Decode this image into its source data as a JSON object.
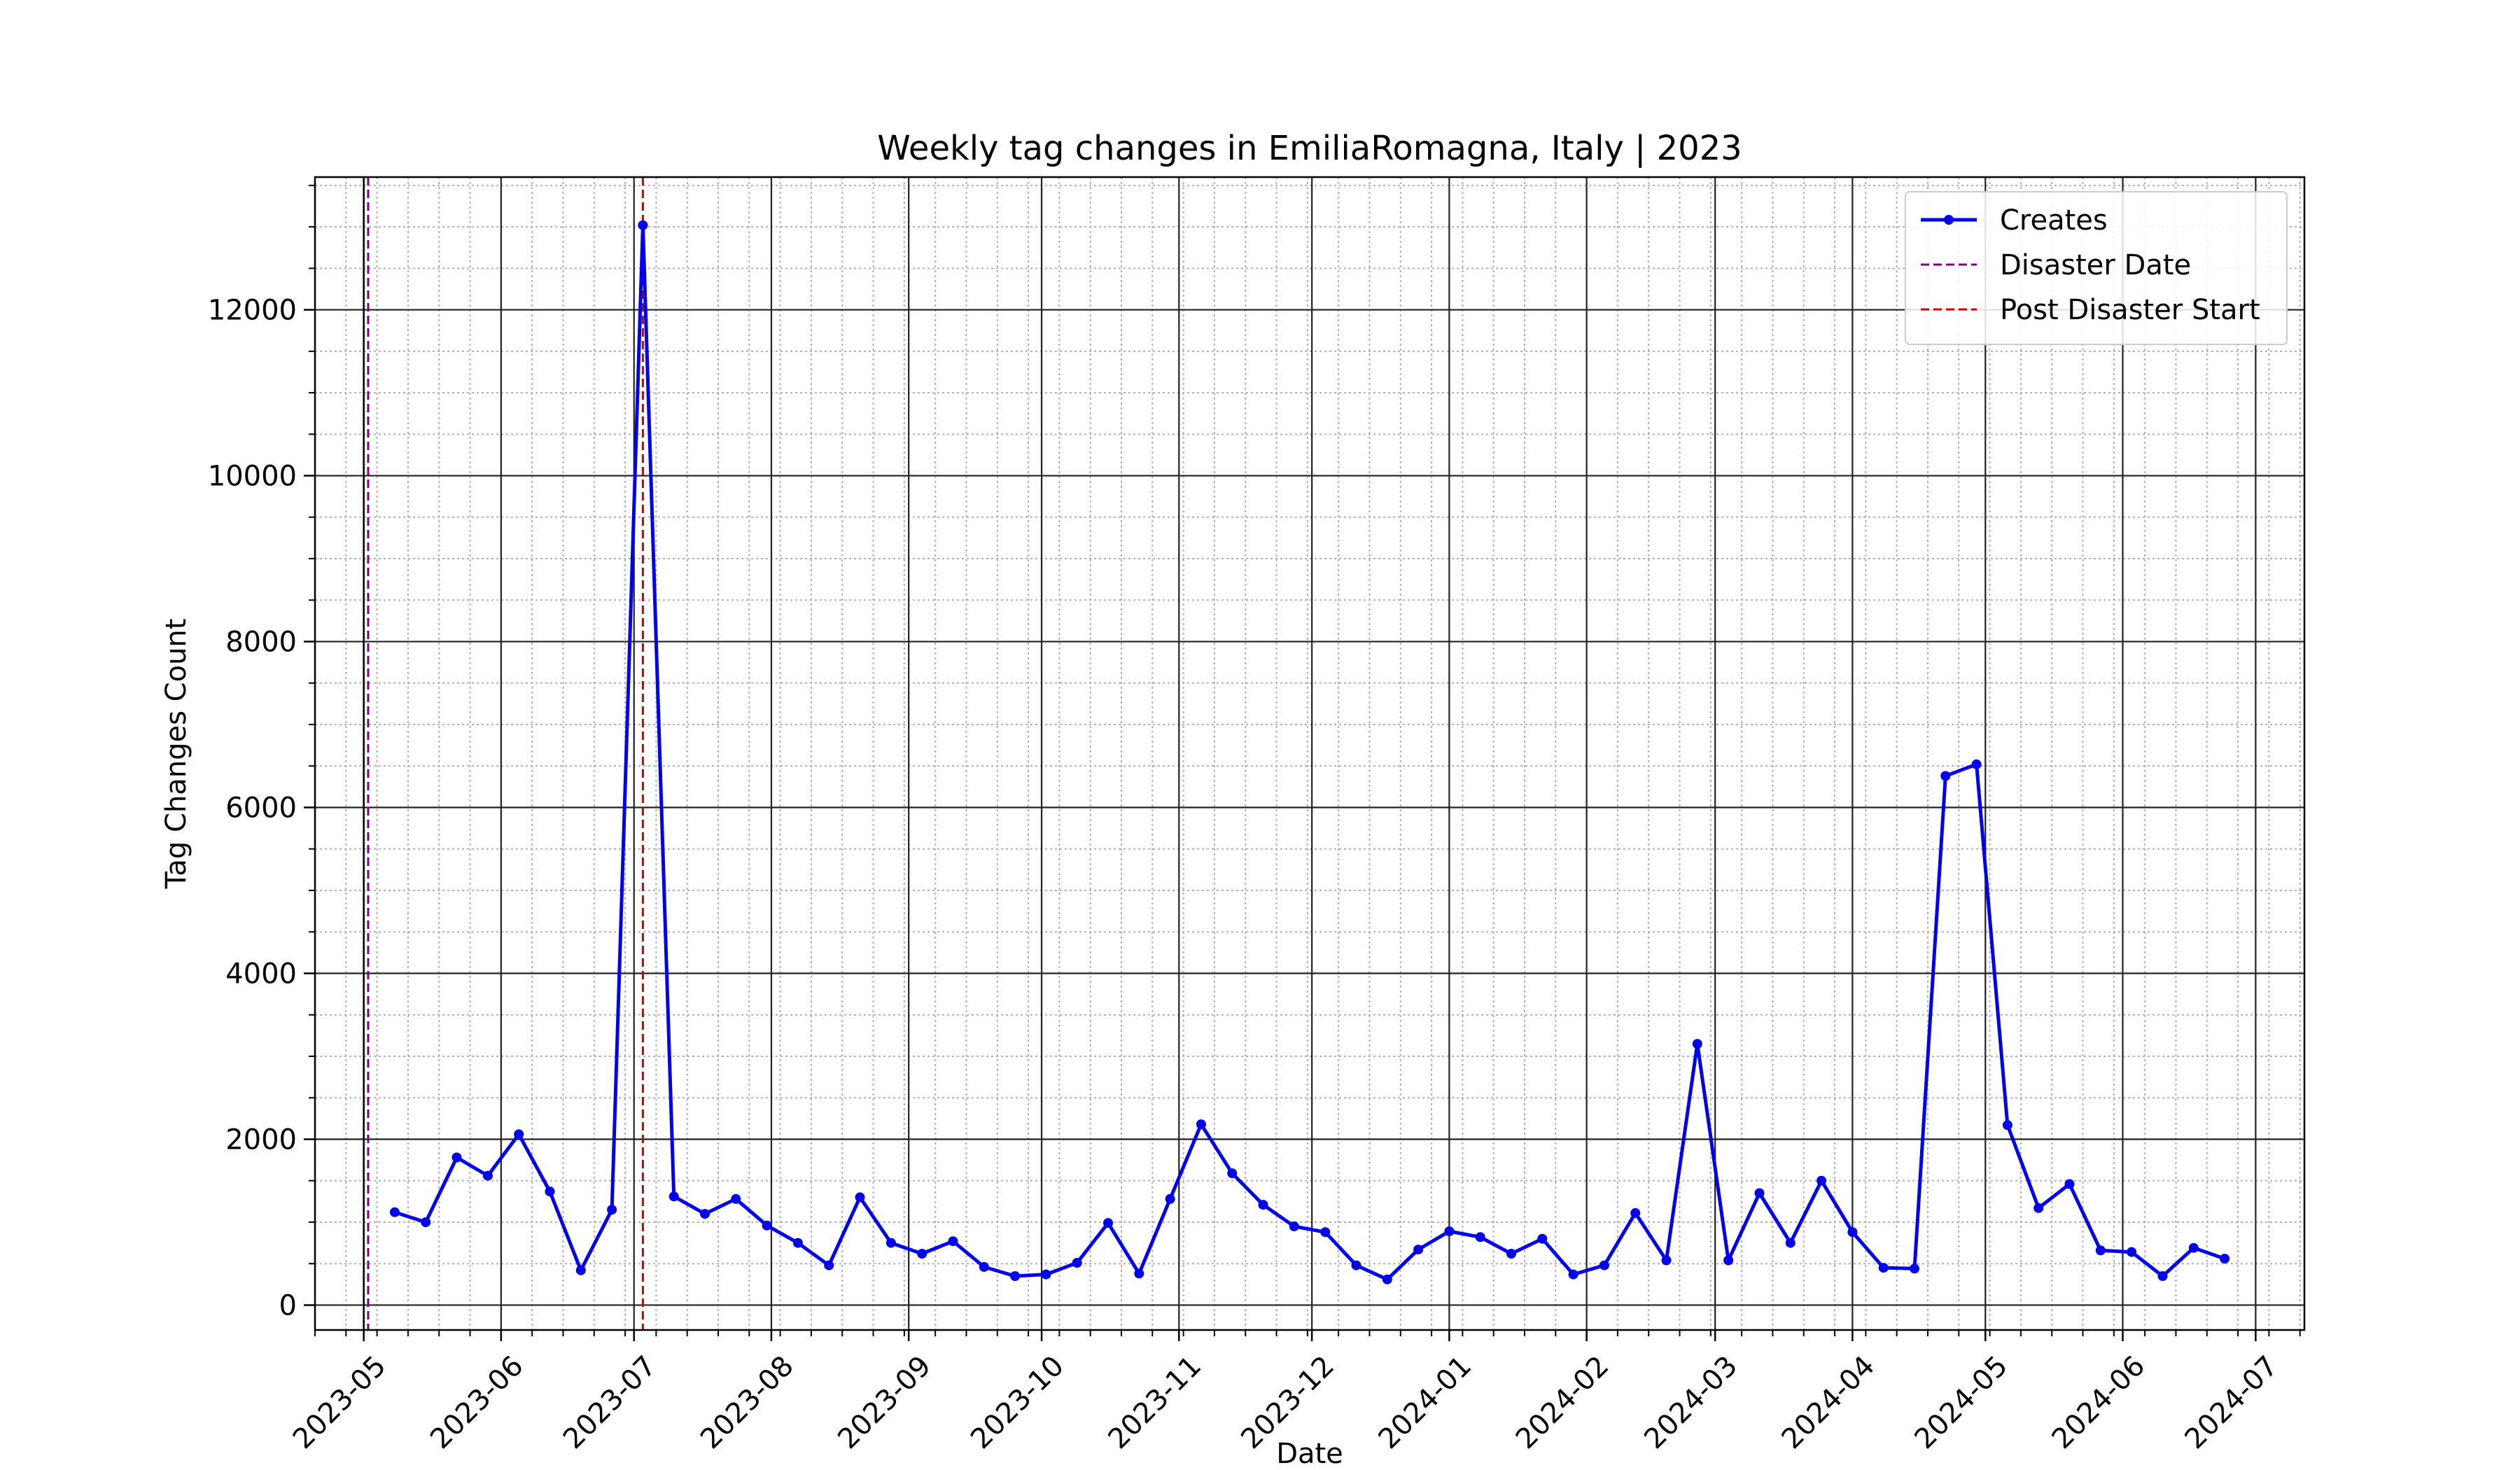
{
  "chart_data": {
    "type": "line",
    "title": "Weekly tag changes in EmiliaRomagna, Italy | 2023",
    "xlabel": "Date",
    "ylabel": "Tag Changes Count",
    "ylim": [
      -300,
      13600
    ],
    "xlim": [
      "2023-04-20",
      "2024-07-12"
    ],
    "yticks": [
      0,
      2000,
      4000,
      6000,
      8000,
      10000,
      12000
    ],
    "xticks": [
      "2023-05",
      "2023-06",
      "2023-07",
      "2023-08",
      "2023-09",
      "2023-10",
      "2023-11",
      "2023-12",
      "2024-01",
      "2024-02",
      "2024-03",
      "2024-04",
      "2024-05",
      "2024-06",
      "2024-07"
    ],
    "grid": true,
    "legend_position": "top-right",
    "series": [
      {
        "name": "Creates",
        "color": "#0000ee",
        "x": [
          "2023-05-08",
          "2023-05-15",
          "2023-05-22",
          "2023-05-29",
          "2023-06-05",
          "2023-06-12",
          "2023-06-19",
          "2023-06-26",
          "2023-07-03",
          "2023-07-10",
          "2023-07-17",
          "2023-07-24",
          "2023-07-31",
          "2023-08-07",
          "2023-08-14",
          "2023-08-21",
          "2023-08-28",
          "2023-09-04",
          "2023-09-11",
          "2023-09-18",
          "2023-09-25",
          "2023-10-02",
          "2023-10-09",
          "2023-10-16",
          "2023-10-23",
          "2023-10-30",
          "2023-11-06",
          "2023-11-13",
          "2023-11-20",
          "2023-11-27",
          "2023-12-04",
          "2023-12-11",
          "2023-12-18",
          "2023-12-25",
          "2024-01-01",
          "2024-01-08",
          "2024-01-15",
          "2024-01-22",
          "2024-01-29",
          "2024-02-05",
          "2024-02-12",
          "2024-02-19",
          "2024-02-26",
          "2024-03-04",
          "2024-03-11",
          "2024-03-18",
          "2024-03-25",
          "2024-04-01",
          "2024-04-08",
          "2024-04-15",
          "2024-04-22",
          "2024-04-29",
          "2024-05-06",
          "2024-05-13",
          "2024-05-20",
          "2024-05-27",
          "2024-06-03",
          "2024-06-10",
          "2024-06-17",
          "2024-06-24"
        ],
        "values": [
          1120,
          1000,
          1780,
          1560,
          2060,
          1370,
          420,
          1150,
          13020,
          1310,
          1100,
          1280,
          960,
          750,
          480,
          1300,
          750,
          620,
          770,
          460,
          350,
          370,
          510,
          990,
          380,
          1280,
          2180,
          1590,
          1210,
          950,
          880,
          480,
          310,
          670,
          890,
          820,
          620,
          800,
          370,
          480,
          1110,
          540,
          3150,
          540,
          1350,
          750,
          1500,
          880,
          450,
          440,
          6380,
          6520,
          2170,
          1170,
          1460,
          660,
          640,
          350,
          690,
          560
        ]
      }
    ],
    "vlines": [
      {
        "name": "Disaster Date",
        "date": "2023-05-02",
        "color": "#800080",
        "style": "dashed"
      },
      {
        "name": "Post Disaster Start",
        "date": "2023-07-03",
        "color": "#cc0000",
        "style": "dashed"
      }
    ],
    "extra_vline": {
      "date": "2023-05-01",
      "color": "#000000"
    }
  }
}
